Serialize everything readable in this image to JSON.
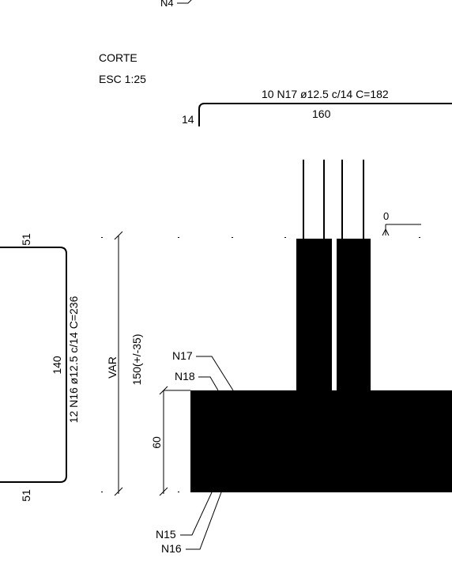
{
  "top_label": "N4",
  "view": {
    "title": "CORTE",
    "scale": "ESC 1:25"
  },
  "top_bar": {
    "spec": "10 N17 ø12.5 c/14 C=182",
    "length": "160",
    "hook": "14"
  },
  "left_bar": {
    "spec": "12 N16 ø12.5 c/14 C=236",
    "length": "140",
    "hook_top": "51",
    "hook_bottom": "51"
  },
  "dims": {
    "var": "VAR",
    "height_var": "150(+/-35)",
    "footing_height": "60"
  },
  "level": {
    "value": "0"
  },
  "callouts": {
    "n17": "N17",
    "n18": "N18",
    "n15": "N15",
    "n16": "N16"
  },
  "colors": {
    "ink": "#000000",
    "background": "#ffffff"
  }
}
